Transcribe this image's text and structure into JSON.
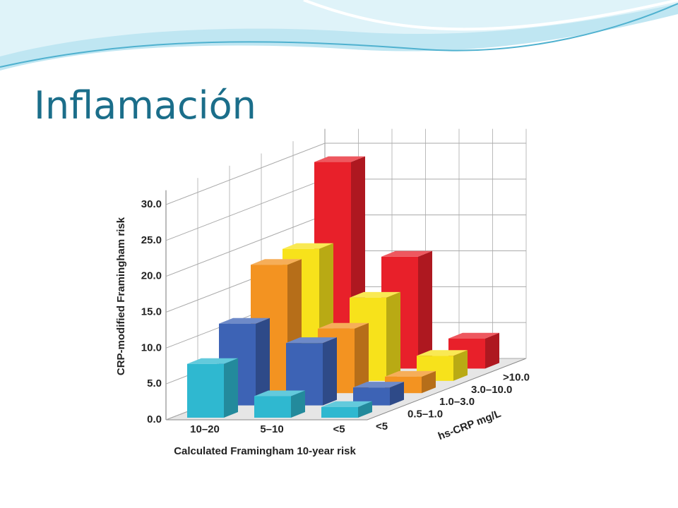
{
  "slide": {
    "title": "Inflamación"
  },
  "chart_data": {
    "type": "bar3d",
    "x_label": "Calculated Framingham 10-year risk",
    "y_label": "CRP-modified Framingham risk",
    "z_label": "hs-CRP mg/L",
    "categories": [
      "10–20",
      "5–10",
      "<5"
    ],
    "series": [
      {
        "name": "<5",
        "color": "#2fb8d0",
        "values": [
          7.5,
          3,
          1.5
        ]
      },
      {
        "name": "0.5–1.0",
        "color": "#3d63b5",
        "values": [
          11.4,
          8.7,
          2.5
        ]
      },
      {
        "name": "1.0–3.0",
        "color": "#f39321",
        "values": [
          17.9,
          9,
          2.3
        ]
      },
      {
        "name": "3.0–10.0",
        "color": "#f7e21b",
        "values": [
          18.4,
          11.6,
          3.5
        ]
      },
      {
        "name": ">10.0",
        "color": "#e8202a",
        "values": [
          28.8,
          15.6,
          4.2
        ]
      }
    ],
    "ylim": [
      0,
      32
    ],
    "yticks": [
      {
        "value": 0,
        "label": "0.0"
      },
      {
        "value": 5,
        "label": "5.0"
      },
      {
        "value": 10,
        "label": "10.0"
      },
      {
        "value": 15,
        "label": "15.0"
      },
      {
        "value": 20,
        "label": "20.0"
      },
      {
        "value": 25,
        "label": "25.0"
      },
      {
        "value": 30,
        "label": "30.0"
      }
    ],
    "grid": true
  }
}
